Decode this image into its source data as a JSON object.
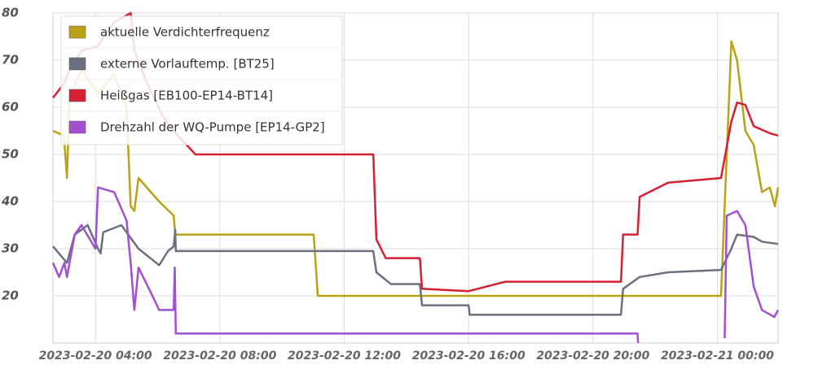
{
  "chart_data": {
    "type": "line",
    "xlim": [
      "2023-02-20 02:38",
      "2023-02-21 01:57"
    ],
    "xticks": [
      "2023-02-20 04:00",
      "2023-02-20 08:00",
      "2023-02-20 12:00",
      "2023-02-20 16:00",
      "2023-02-20 20:00",
      "2023-02-21 00:00"
    ],
    "ylim": [
      10,
      80
    ],
    "yticks": [
      20,
      30,
      40,
      50,
      60,
      70,
      80
    ],
    "grid": true,
    "legend": "upper left",
    "series": [
      {
        "name": "aktuelle Verdichterfrequenz",
        "color": "#b9a217",
        "x": [
          "2023-02-20 02:38",
          "2023-02-20 02:59",
          "2023-02-20 03:05",
          "2023-02-20 03:10",
          "2023-02-20 03:33",
          "2023-02-20 04:05",
          "2023-02-20 04:36",
          "2023-02-20 05:00",
          "2023-02-20 05:08",
          "2023-02-20 05:15",
          "2023-02-20 05:23",
          "2023-02-20 06:03",
          "2023-02-20 06:31",
          "2023-02-20 06:34",
          "2023-02-20 11:01",
          "2023-02-20 11:09",
          "2023-02-21 00:07",
          "2023-02-21 00:27",
          "2023-02-21 00:38",
          "2023-02-21 00:54",
          "2023-02-21 01:10",
          "2023-02-21 01:26",
          "2023-02-21 01:41",
          "2023-02-21 01:51",
          "2023-02-21 01:57"
        ],
        "values": [
          55,
          54,
          45,
          62,
          68,
          63,
          67,
          60,
          39,
          38,
          45,
          40,
          37,
          33,
          33,
          20,
          20,
          74,
          70,
          55,
          52,
          42,
          43,
          39,
          43
        ]
      },
      {
        "name": "externe Vorlauftemp. [BT25]",
        "color": "#6b7080",
        "x": [
          "2023-02-20 02:38",
          "2023-02-20 03:05",
          "2023-02-20 03:20",
          "2023-02-20 03:45",
          "2023-02-20 04:05",
          "2023-02-20 04:10",
          "2023-02-20 04:15",
          "2023-02-20 04:50",
          "2023-02-20 05:23",
          "2023-02-20 06:03",
          "2023-02-20 06:20",
          "2023-02-20 06:31",
          "2023-02-20 06:34",
          "2023-02-20 06:35",
          "2023-02-20 12:56",
          "2023-02-20 13:02",
          "2023-02-20 13:30",
          "2023-02-20 14:26",
          "2023-02-20 14:30",
          "2023-02-20 16:00",
          "2023-02-20 16:02",
          "2023-02-20 20:54",
          "2023-02-20 20:58",
          "2023-02-20 21:30",
          "2023-02-20 22:25",
          "2023-02-21 00:07",
          "2023-02-21 00:27",
          "2023-02-21 00:38",
          "2023-02-21 01:10",
          "2023-02-21 01:26",
          "2023-02-21 01:57"
        ],
        "values": [
          30.5,
          27,
          33,
          35,
          30,
          29,
          33.5,
          35,
          30,
          26.5,
          29.5,
          30.5,
          34,
          29.5,
          29.5,
          25,
          22.5,
          22.5,
          18,
          18,
          16,
          16,
          21.5,
          24,
          25,
          25.5,
          30,
          33,
          32.5,
          31.5,
          31
        ]
      },
      {
        "name": "Heißgas [EB100-EP14-BT14]",
        "color": "#d42030",
        "x": [
          "2023-02-20 02:38",
          "2023-02-20 02:59",
          "2023-02-20 03:10",
          "2023-02-20 03:33",
          "2023-02-20 04:05",
          "2023-02-20 04:36",
          "2023-02-20 05:08",
          "2023-02-20 05:15",
          "2023-02-20 05:40",
          "2023-02-20 06:10",
          "2023-02-20 06:31",
          "2023-02-20 07:13",
          "2023-02-20 12:56",
          "2023-02-20 13:02",
          "2023-02-20 13:20",
          "2023-02-20 14:26",
          "2023-02-20 14:30",
          "2023-02-20 16:00",
          "2023-02-20 17:11",
          "2023-02-20 20:54",
          "2023-02-20 20:58",
          "2023-02-20 21:26",
          "2023-02-20 21:30",
          "2023-02-20 22:25",
          "2023-02-21 00:07",
          "2023-02-21 00:27",
          "2023-02-21 00:38",
          "2023-02-21 00:54",
          "2023-02-21 01:10",
          "2023-02-21 01:41",
          "2023-02-21 01:57"
        ],
        "values": [
          62,
          65,
          68,
          72,
          73,
          78,
          80,
          72,
          65,
          58,
          55,
          50,
          50,
          32,
          28,
          28,
          21.5,
          21,
          23,
          23,
          33,
          33,
          41,
          44,
          45,
          57,
          61,
          60.5,
          56,
          54.5,
          54
        ]
      },
      {
        "name": "Drehzahl der WQ-Pumpe [EP14-GP2]",
        "color": "#a24fd2",
        "x": [
          "2023-02-20 02:38",
          "2023-02-20 02:50",
          "2023-02-20 03:00",
          "2023-02-20 03:05",
          "2023-02-20 03:20",
          "2023-02-20 03:33",
          "2023-02-20 04:00",
          "2023-02-20 04:05",
          "2023-02-20 04:36",
          "2023-02-20 05:00",
          "2023-02-20 05:08",
          "2023-02-20 05:15",
          "2023-02-20 05:23",
          "2023-02-20 05:50",
          "2023-02-20 06:03",
          "2023-02-20 06:31",
          "2023-02-20 06:33",
          "2023-02-20 06:35",
          "2023-02-20 21:26",
          "2023-02-20 21:27",
          "2023-02-20 23:00",
          "2023-02-21 00:14",
          "2023-02-21 00:18",
          "2023-02-21 00:38",
          "2023-02-21 00:54",
          "2023-02-21 01:10",
          "2023-02-21 01:26",
          "2023-02-21 01:50",
          "2023-02-21 01:57"
        ],
        "values": [
          27,
          24,
          27,
          24,
          33,
          35,
          30,
          43,
          42,
          36,
          27,
          17,
          26,
          20,
          17,
          17,
          26,
          12,
          12,
          10,
          null,
          11,
          37,
          38,
          35,
          22,
          17,
          15.5,
          17
        ]
      }
    ]
  }
}
